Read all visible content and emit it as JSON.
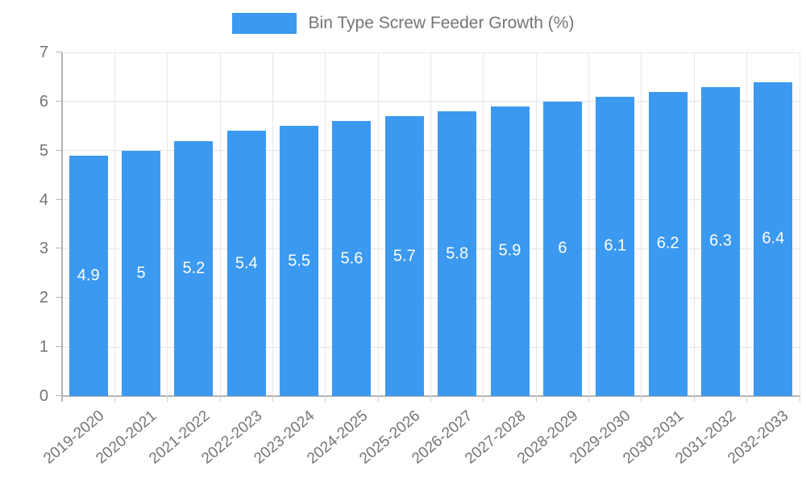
{
  "chart_data": {
    "type": "bar",
    "title": "",
    "legend": "Bin Type Screw Feeder Growth (%)",
    "legend_position": "top",
    "categories": [
      "2019-2020",
      "2020-2021",
      "2021-2022",
      "2022-2023",
      "2023-2024",
      "2024-2025",
      "2025-2026",
      "2026-2027",
      "2027-2028",
      "2028-2029",
      "2029-2030",
      "2030-2031",
      "2031-2032",
      "2032-2033"
    ],
    "values": [
      4.9,
      5,
      5.2,
      5.4,
      5.5,
      5.6,
      5.7,
      5.8,
      5.9,
      6,
      6.1,
      6.2,
      6.3,
      6.4
    ],
    "xlabel": "",
    "ylabel": "",
    "ylim": [
      0,
      7
    ],
    "yticks": [
      0,
      1,
      2,
      3,
      4,
      5,
      6,
      7
    ],
    "grid": true,
    "colors": {
      "bar": "#3B99F0",
      "grid": "#E6E6E6",
      "axis": "#B3B3B3",
      "tick": "#CCCCCC",
      "text": "#757575",
      "value_label": "#FFFFFF",
      "background": "#FFFFFF"
    }
  }
}
